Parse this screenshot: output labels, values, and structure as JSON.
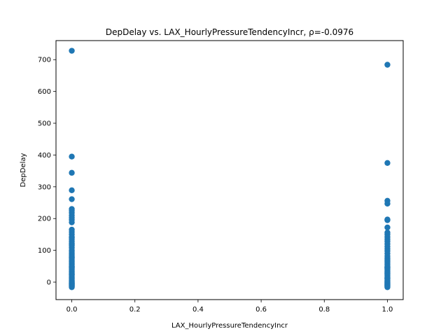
{
  "chart_data": {
    "type": "scatter",
    "title": "DepDelay vs. LAX_HourlyPressureTendencyIncr, ρ=-0.0976",
    "xlabel": "LAX_HourlyPressureTendencyIncr",
    "ylabel": "DepDelay",
    "xlim": [
      -0.05,
      1.05
    ],
    "ylim": [
      -55,
      760
    ],
    "x_ticks": [
      0.0,
      0.2,
      0.4,
      0.6,
      0.8,
      1.0
    ],
    "x_tick_labels": [
      "0.0",
      "0.2",
      "0.4",
      "0.6",
      "0.8",
      "1.0"
    ],
    "y_ticks": [
      0,
      100,
      200,
      300,
      400,
      500,
      600,
      700
    ],
    "y_tick_labels": [
      "0",
      "100",
      "200",
      "300",
      "400",
      "500",
      "600",
      "700"
    ],
    "grid": false,
    "marker_color": "#1f77b4",
    "series": [
      {
        "x": [
          0,
          0,
          0,
          0,
          0,
          0,
          0,
          0,
          0,
          0,
          0,
          0,
          0,
          0,
          0,
          0,
          0,
          0,
          0,
          0,
          0,
          0,
          0,
          0,
          0,
          0,
          0,
          0,
          0,
          0,
          0,
          0,
          0,
          0,
          0,
          0,
          0,
          0,
          0,
          0,
          0,
          0,
          0,
          0,
          0,
          0,
          0,
          0,
          0,
          0,
          0,
          0,
          0,
          0,
          0,
          0,
          0,
          0,
          0,
          0,
          1,
          1,
          1,
          1,
          1,
          1,
          1,
          1,
          1,
          1,
          1,
          1,
          1,
          1,
          1,
          1,
          1,
          1,
          1,
          1,
          1,
          1,
          1,
          1,
          1,
          1,
          1,
          1,
          1,
          1,
          1,
          1,
          1,
          1,
          1,
          1,
          1,
          1,
          1,
          1,
          1,
          1,
          1,
          1,
          1,
          1,
          1,
          1
        ],
        "y": [
          728,
          395,
          344,
          289,
          261,
          230,
          225,
          218,
          210,
          203,
          196,
          188,
          165,
          158,
          150,
          142,
          135,
          128,
          122,
          115,
          108,
          100,
          95,
          90,
          85,
          80,
          75,
          70,
          66,
          62,
          58,
          54,
          50,
          46,
          42,
          38,
          34,
          30,
          26,
          22,
          18,
          14,
          10,
          6,
          3,
          0,
          -2,
          -4,
          -6,
          -8,
          -10,
          -12,
          -14,
          -16,
          140,
          118,
          78,
          48,
          25,
          -5,
          684,
          375,
          256,
          247,
          197,
          195,
          172,
          156,
          150,
          142,
          135,
          128,
          120,
          112,
          105,
          98,
          90,
          82,
          75,
          70,
          65,
          60,
          55,
          50,
          46,
          42,
          38,
          34,
          30,
          26,
          22,
          18,
          14,
          10,
          6,
          3,
          0,
          -2,
          -4,
          -6,
          -8,
          -10,
          -12,
          -14,
          -16,
          45,
          28,
          12
        ]
      }
    ]
  }
}
